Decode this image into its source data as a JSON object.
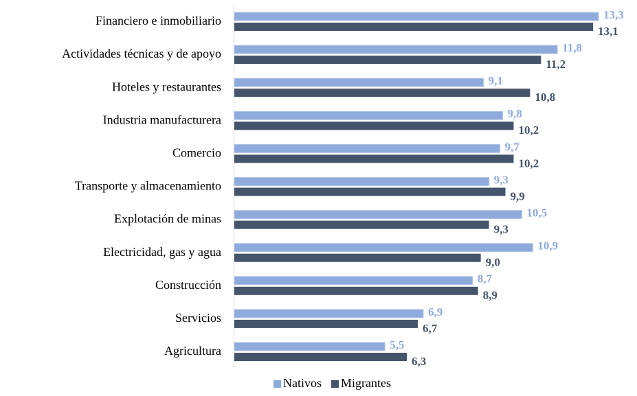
{
  "chart_data": {
    "type": "hbar",
    "categories": [
      "Financiero e inmobiliario",
      "Actividades técnicas y de apoyo",
      "Hoteles y restaurantes",
      "Industria manufacturera",
      "Comercio",
      "Transporte y almacenamiento",
      "Explotación de minas",
      "Electricidad, gas y agua",
      "Construcción",
      "Servicios",
      "Agricultura"
    ],
    "series": [
      {
        "name": "Nativos",
        "color": "#8faadc",
        "values": [
          13.3,
          11.8,
          9.1,
          9.8,
          9.7,
          9.3,
          10.5,
          10.9,
          8.7,
          6.9,
          5.5
        ],
        "value_labels": [
          "13,3",
          "11,8",
          "9,1",
          "9,8",
          "9,7",
          "9,3",
          "10,5",
          "10,9",
          "8,7",
          "6,9",
          "5,5"
        ]
      },
      {
        "name": "Migrantes",
        "color": "#44546a",
        "values": [
          13.1,
          11.2,
          10.8,
          10.2,
          10.2,
          9.9,
          9.3,
          9.0,
          8.9,
          6.7,
          6.3
        ],
        "value_labels": [
          "13,1",
          "11,2",
          "10,8",
          "10,2",
          "10,2",
          "9,9",
          "9,3",
          "9,0",
          "8,9",
          "6,7",
          "6,3"
        ]
      }
    ],
    "xlim": [
      0,
      14
    ],
    "legend": "bottom"
  }
}
